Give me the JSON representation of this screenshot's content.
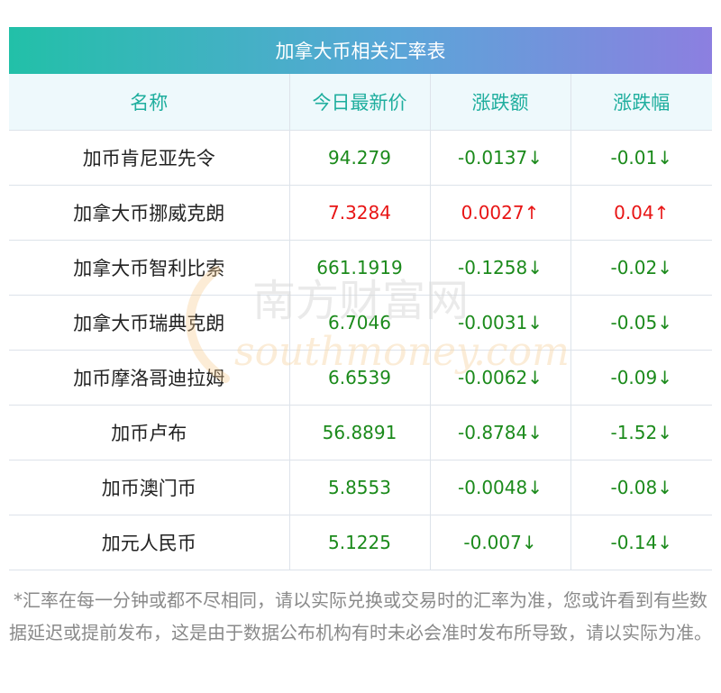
{
  "table": {
    "title": "加拿大币相关汇率表",
    "headers": [
      "名称",
      "今日最新价",
      "涨跌额",
      "涨跌幅"
    ],
    "rows": [
      {
        "name": "加币肯尼亚先令",
        "price": "94.279",
        "change": "-0.0137↓",
        "pct": "-0.01↓",
        "trend": "down"
      },
      {
        "name": "加拿大币挪威克朗",
        "price": "7.3284",
        "change": "0.0027↑",
        "pct": "0.04↑",
        "trend": "up"
      },
      {
        "name": "加拿大币智利比索",
        "price": "661.1919",
        "change": "-0.1258↓",
        "pct": "-0.02↓",
        "trend": "down"
      },
      {
        "name": "加拿大币瑞典克朗",
        "price": "6.7046",
        "change": "-0.0031↓",
        "pct": "-0.05↓",
        "trend": "down"
      },
      {
        "name": "加币摩洛哥迪拉姆",
        "price": "6.6539",
        "change": "-0.0062↓",
        "pct": "-0.09↓",
        "trend": "down"
      },
      {
        "name": "加币卢布",
        "price": "56.8891",
        "change": "-0.8784↓",
        "pct": "-1.52↓",
        "trend": "down"
      },
      {
        "name": "加币澳门币",
        "price": "5.8553",
        "change": "-0.0048↓",
        "pct": "-0.08↓",
        "trend": "down"
      },
      {
        "name": "加元人民币",
        "price": "5.1225",
        "change": "-0.007↓",
        "pct": "-0.14↓",
        "trend": "down"
      }
    ]
  },
  "note": "*汇率在每一分钟或都不尽相同，请以实际兑换或交易时的汇率为准，您或许看到有些数据延迟或提前发布，这是由于数据公布机构有时未必会准时发布所导致，请以实际为准。",
  "watermark": {
    "cn": "南方财富网",
    "en": "southmoney.com"
  },
  "colors": {
    "header_text": "#1fae9e",
    "up": "#e81515",
    "down": "#1b8a1b",
    "title_from": "#22c0a8",
    "title_to": "#8c7fe0"
  }
}
